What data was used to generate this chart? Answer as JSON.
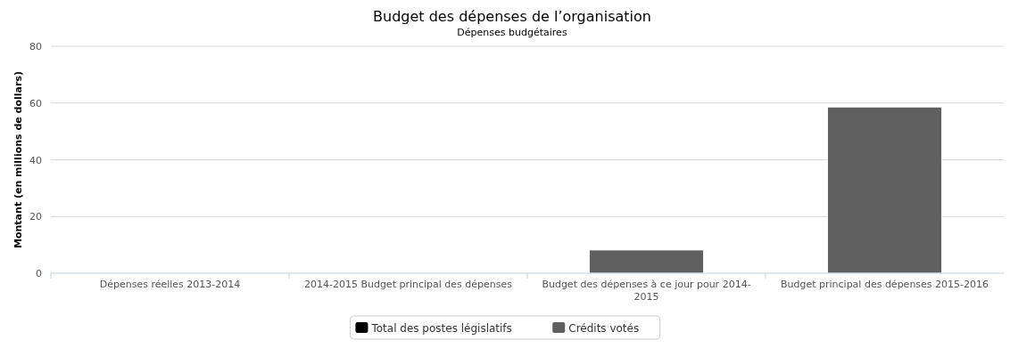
{
  "chart_data": {
    "type": "bar",
    "title": "Budget des dépenses de l’organisation",
    "subtitle": "Dépenses budgétaires",
    "ylabel": "Montant (en millions de dollars)",
    "categories": [
      "Dépenses réelles 2013-2014",
      "2014-2015 Budget principal des dépenses",
      "Budget des dépenses à ce jour pour 2014-2015",
      "Budget principal des dépenses 2015-2016"
    ],
    "stacked": true,
    "series": [
      {
        "name": "Total des postes législatifs",
        "color": "#000000",
        "values": [
          0,
          0,
          0,
          0
        ]
      },
      {
        "name": "Crédits votés",
        "color": "#5f5f5f",
        "values": [
          0,
          0,
          8.2,
          58.6
        ]
      }
    ],
    "ylim": [
      0,
      80
    ],
    "yticks": [
      0,
      20,
      40,
      60,
      80
    ],
    "grid": "y",
    "legend": "bottom"
  }
}
